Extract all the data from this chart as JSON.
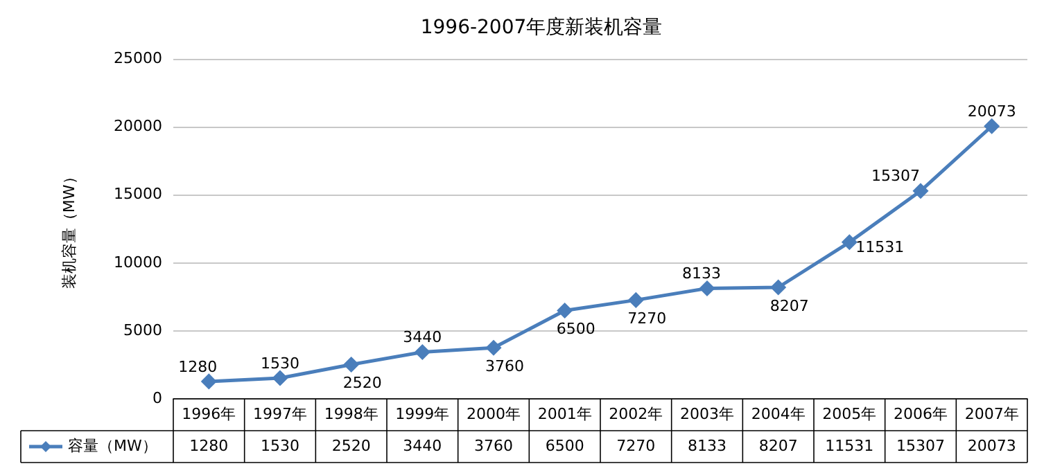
{
  "chart_data": {
    "type": "line",
    "title": "1996-2007年度新装机容量",
    "ylabel": "装机容量（MW）",
    "categories": [
      "1996年",
      "1997年",
      "1998年",
      "1999年",
      "2000年",
      "2001年",
      "2002年",
      "2003年",
      "2004年",
      "2005年",
      "2006年",
      "2007年"
    ],
    "series": [
      {
        "name": "容量（MW）",
        "color": "#4a7ebb",
        "values": [
          1280,
          1530,
          2520,
          3440,
          3760,
          6500,
          7270,
          8133,
          8207,
          11531,
          15307,
          20073
        ]
      }
    ],
    "annotations": [
      "1280",
      "1530",
      "2520",
      "3440",
      "3760",
      "6500",
      "7270",
      "8133",
      "8207",
      "11531",
      "15307",
      "20073"
    ],
    "ylim": [
      0,
      25000
    ],
    "yticks": [
      0,
      5000,
      10000,
      15000,
      20000,
      25000
    ],
    "grid": "y",
    "legend": "bottom",
    "marker": "diamond",
    "line_style": "solid",
    "data_labels": true
  }
}
